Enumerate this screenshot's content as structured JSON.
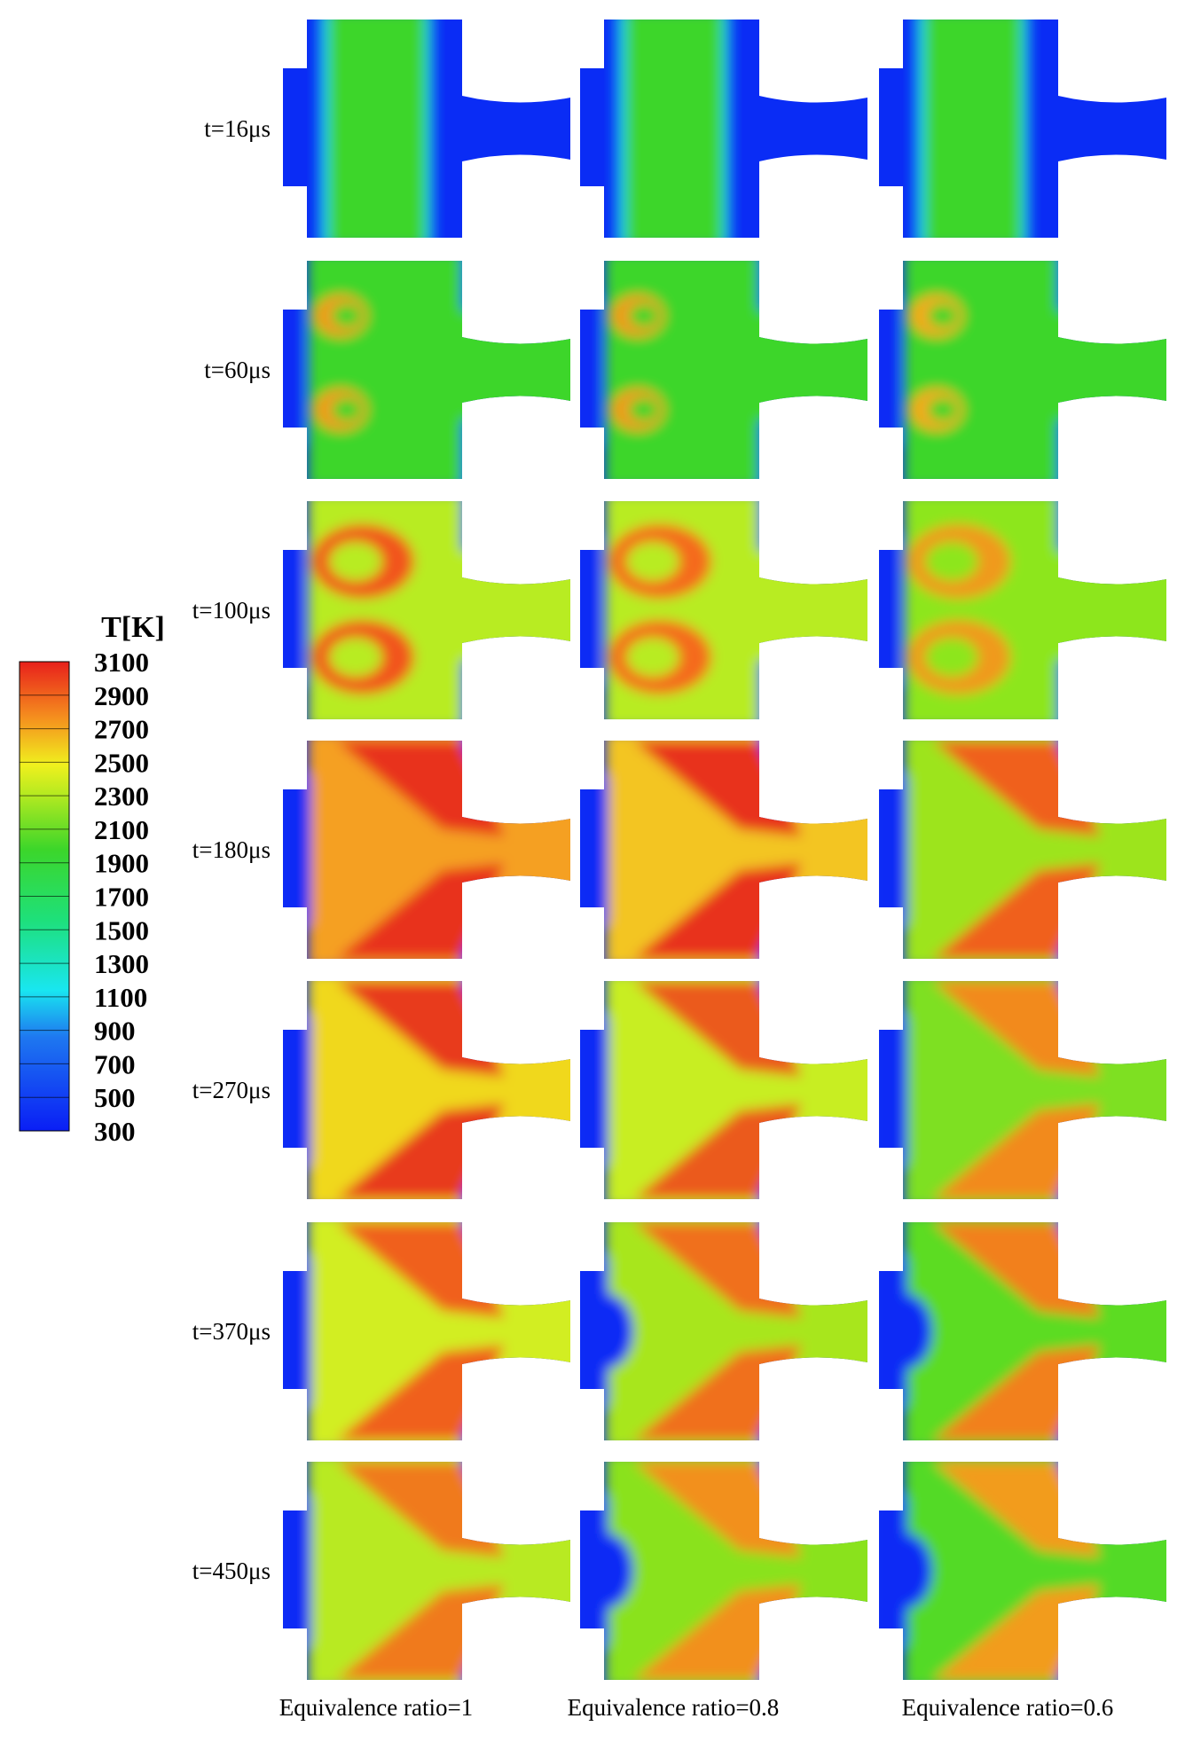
{
  "colorbar": {
    "title": "T[K]",
    "ticks": [
      300,
      500,
      700,
      900,
      1100,
      1300,
      1500,
      1700,
      1900,
      2100,
      2300,
      2500,
      2700,
      2900,
      3100
    ]
  },
  "rows": [
    "t=16μs",
    "t=60μs",
    "t=100μs",
    "t=180μs",
    "t=270μs",
    "t=370μs",
    "t=450μs"
  ],
  "columns": [
    "Equivalence ratio=1",
    "Equivalence ratio=0.8",
    "Equivalence ratio=0.6"
  ]
}
